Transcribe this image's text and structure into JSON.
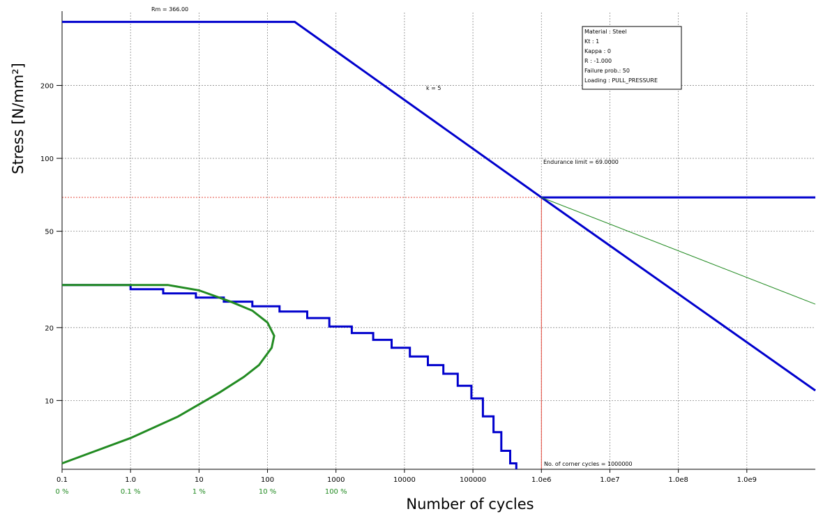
{
  "chart_data": {
    "type": "line",
    "xlabel": "Number of cycles",
    "ylabel": "Stress  [N/mm²]",
    "x_scale": "log",
    "y_scale": "log",
    "xlim": [
      0.1,
      10000000000
    ],
    "ylim": [
      5.2,
      400
    ],
    "grid": true,
    "x_ticks": [
      {
        "value": 0.1,
        "label": "0.1"
      },
      {
        "value": 1,
        "label": "1.0"
      },
      {
        "value": 10,
        "label": "10"
      },
      {
        "value": 100,
        "label": "100"
      },
      {
        "value": 1000,
        "label": "1000"
      },
      {
        "value": 10000,
        "label": "10000"
      },
      {
        "value": 100000,
        "label": "100000"
      },
      {
        "value": 1000000,
        "label": "1.0e6"
      },
      {
        "value": 10000000,
        "label": "1.0e7"
      },
      {
        "value": 100000000,
        "label": "1.0e8"
      },
      {
        "value": 1000000000,
        "label": "1.0e9"
      }
    ],
    "y_ticks": [
      {
        "value": 10,
        "label": "10"
      },
      {
        "value": 20,
        "label": "20"
      },
      {
        "value": 50,
        "label": "50"
      },
      {
        "value": 100,
        "label": "100"
      },
      {
        "value": 200,
        "label": "200"
      }
    ],
    "percent_ticks": [
      {
        "value": 0.1,
        "label": "0 %"
      },
      {
        "value": 1,
        "label": "0.1 %"
      },
      {
        "value": 10,
        "label": "1 %"
      },
      {
        "value": 100,
        "label": "10 %"
      },
      {
        "value": 1000,
        "label": "100 %"
      }
    ],
    "annotations": {
      "rm": "Rm = 366.00",
      "slope": "k = 5",
      "endurance": "Endurance limit = 69.0000",
      "corner": "No. of corner cycles = 1000000"
    },
    "info_box": [
      "Material   :  Steel",
      "Kt          :  1",
      "Kappa      :  0",
      "R           :  -1.000",
      "Failure prob.:  50",
      "Loading   :  PULL_PRESSURE"
    ],
    "reference_lines": {
      "endurance_stress": 69,
      "corner_cycles": 1000000
    },
    "series": [
      {
        "color": "#0000cd",
        "style": "line",
        "points": [
          [
            0.1,
            366
          ],
          [
            250,
            366
          ],
          [
            1000000,
            69
          ],
          [
            10000000000,
            69
          ]
        ]
      },
      {
        "color": "#0000cd",
        "style": "line",
        "points": [
          [
            1000000,
            69
          ],
          [
            10000000000,
            11
          ]
        ]
      },
      {
        "color": "#228b22",
        "style": "thin",
        "points": [
          [
            1000000,
            69
          ],
          [
            10000000000,
            25
          ]
        ]
      },
      {
        "color": "#0000cd",
        "style": "step",
        "points": [
          [
            0.1,
            30
          ],
          [
            1,
            30
          ],
          [
            1,
            28.8
          ],
          [
            3,
            28.8
          ],
          [
            3,
            27.7
          ],
          [
            9,
            27.7
          ],
          [
            9,
            26.6
          ],
          [
            23,
            26.6
          ],
          [
            23,
            25.6
          ],
          [
            60,
            25.6
          ],
          [
            60,
            24.5
          ],
          [
            150,
            24.5
          ],
          [
            150,
            23.3
          ],
          [
            380,
            23.3
          ],
          [
            380,
            21.9
          ],
          [
            800,
            21.9
          ],
          [
            800,
            20.2
          ],
          [
            1700,
            20.2
          ],
          [
            1700,
            19
          ],
          [
            3500,
            19
          ],
          [
            3500,
            17.8
          ],
          [
            6500,
            17.8
          ],
          [
            6500,
            16.5
          ],
          [
            12000,
            16.5
          ],
          [
            12000,
            15.2
          ],
          [
            22000,
            15.2
          ],
          [
            22000,
            14
          ],
          [
            37000,
            14
          ],
          [
            37000,
            12.9
          ],
          [
            60000,
            12.9
          ],
          [
            60000,
            11.5
          ],
          [
            95000,
            11.5
          ],
          [
            95000,
            10.2
          ],
          [
            140000,
            10.2
          ],
          [
            140000,
            8.6
          ],
          [
            200000,
            8.6
          ],
          [
            200000,
            7.4
          ],
          [
            260000,
            7.4
          ],
          [
            260000,
            6.2
          ],
          [
            350000,
            6.2
          ],
          [
            350000,
            5.5
          ],
          [
            430000,
            5.5
          ],
          [
            430000,
            5.2
          ]
        ]
      },
      {
        "color": "#228b22",
        "style": "line",
        "points": [
          [
            0.1,
            30
          ],
          [
            3.5,
            30
          ],
          [
            10,
            28.5
          ],
          [
            30,
            25.5
          ],
          [
            60,
            23.5
          ],
          [
            100,
            21
          ],
          [
            125,
            18.5
          ],
          [
            115,
            16.5
          ],
          [
            75,
            14
          ],
          [
            45,
            12.5
          ],
          [
            20,
            10.8
          ],
          [
            5,
            8.6
          ],
          [
            1,
            7
          ],
          [
            0.1,
            5.5
          ]
        ]
      }
    ]
  }
}
